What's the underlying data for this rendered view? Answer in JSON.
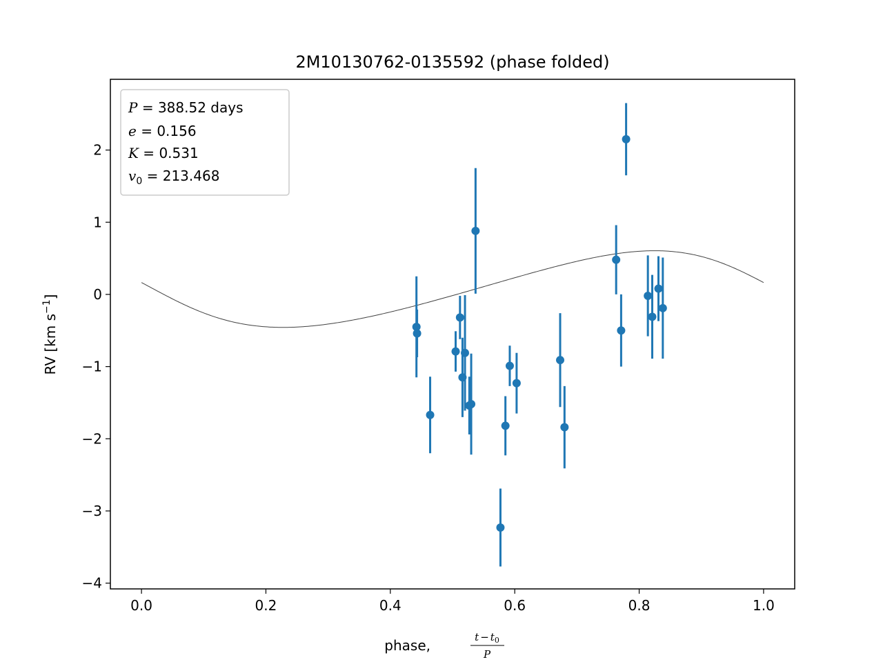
{
  "chart_data": {
    "type": "scatter",
    "title": "2M10130762-0135592 (phase folded)",
    "xlabel": "phase, (t − t₀)/P",
    "xlabel_parts": {
      "prefix": "phase, ",
      "num_t": "t",
      "num_minus": "−",
      "num_t0": "t",
      "num_sub": "0",
      "den": "P"
    },
    "ylabel": "RV [km s⁻¹]",
    "ylabel_parts": {
      "main": "RV [km s",
      "sup": "−1",
      "close": "]"
    },
    "xlim": [
      -0.05,
      1.05
    ],
    "ylim": [
      -4.08,
      2.98
    ],
    "xticks": [
      0.0,
      0.2,
      0.4,
      0.6,
      0.8,
      1.0
    ],
    "xtick_labels": [
      "0.0",
      "0.2",
      "0.4",
      "0.6",
      "0.8",
      "1.0"
    ],
    "yticks": [
      -4,
      -3,
      -2,
      -1,
      0,
      1,
      2
    ],
    "ytick_labels": [
      "−4",
      "−3",
      "−2",
      "−1",
      "0",
      "1",
      "2"
    ],
    "grid": false,
    "legend_position": "top-left",
    "annotation": [
      {
        "var": "P",
        "sub": "",
        "value": "388.52 days"
      },
      {
        "var": "e",
        "sub": "",
        "value": "0.156"
      },
      {
        "var": "K",
        "sub": "",
        "value": "0.531"
      },
      {
        "var": "v",
        "sub": "0",
        "value": "213.468"
      }
    ],
    "model_curve": {
      "P": 388.52,
      "e": 0.156,
      "K": 0.531,
      "v0_offset": 0.0,
      "color": "#404040"
    },
    "points": [
      {
        "x": 0.442,
        "y": -0.45,
        "err": 0.7
      },
      {
        "x": 0.443,
        "y": -0.54,
        "err": 0.33
      },
      {
        "x": 0.464,
        "y": -1.67,
        "err": 0.53
      },
      {
        "x": 0.505,
        "y": -0.79,
        "err": 0.28
      },
      {
        "x": 0.512,
        "y": -0.32,
        "err": 0.3
      },
      {
        "x": 0.516,
        "y": -1.15,
        "err": 0.55
      },
      {
        "x": 0.52,
        "y": -0.81,
        "err": 0.8
      },
      {
        "x": 0.527,
        "y": -1.54,
        "err": 0.4
      },
      {
        "x": 0.53,
        "y": -1.52,
        "err": 0.7
      },
      {
        "x": 0.537,
        "y": 0.88,
        "err": 0.87
      },
      {
        "x": 0.577,
        "y": -3.23,
        "err": 0.54
      },
      {
        "x": 0.585,
        "y": -1.82,
        "err": 0.41
      },
      {
        "x": 0.592,
        "y": -0.99,
        "err": 0.28
      },
      {
        "x": 0.603,
        "y": -1.23,
        "err": 0.42
      },
      {
        "x": 0.673,
        "y": -0.91,
        "err": 0.65
      },
      {
        "x": 0.68,
        "y": -1.84,
        "err": 0.57
      },
      {
        "x": 0.763,
        "y": 0.48,
        "err": 0.48
      },
      {
        "x": 0.771,
        "y": -0.5,
        "err": 0.5
      },
      {
        "x": 0.779,
        "y": 2.15,
        "err": 0.5
      },
      {
        "x": 0.814,
        "y": -0.02,
        "err": 0.56
      },
      {
        "x": 0.821,
        "y": -0.31,
        "err": 0.58
      },
      {
        "x": 0.831,
        "y": 0.08,
        "err": 0.45
      },
      {
        "x": 0.838,
        "y": -0.19,
        "err": 0.7
      }
    ],
    "series_color": "#1f77b4"
  }
}
